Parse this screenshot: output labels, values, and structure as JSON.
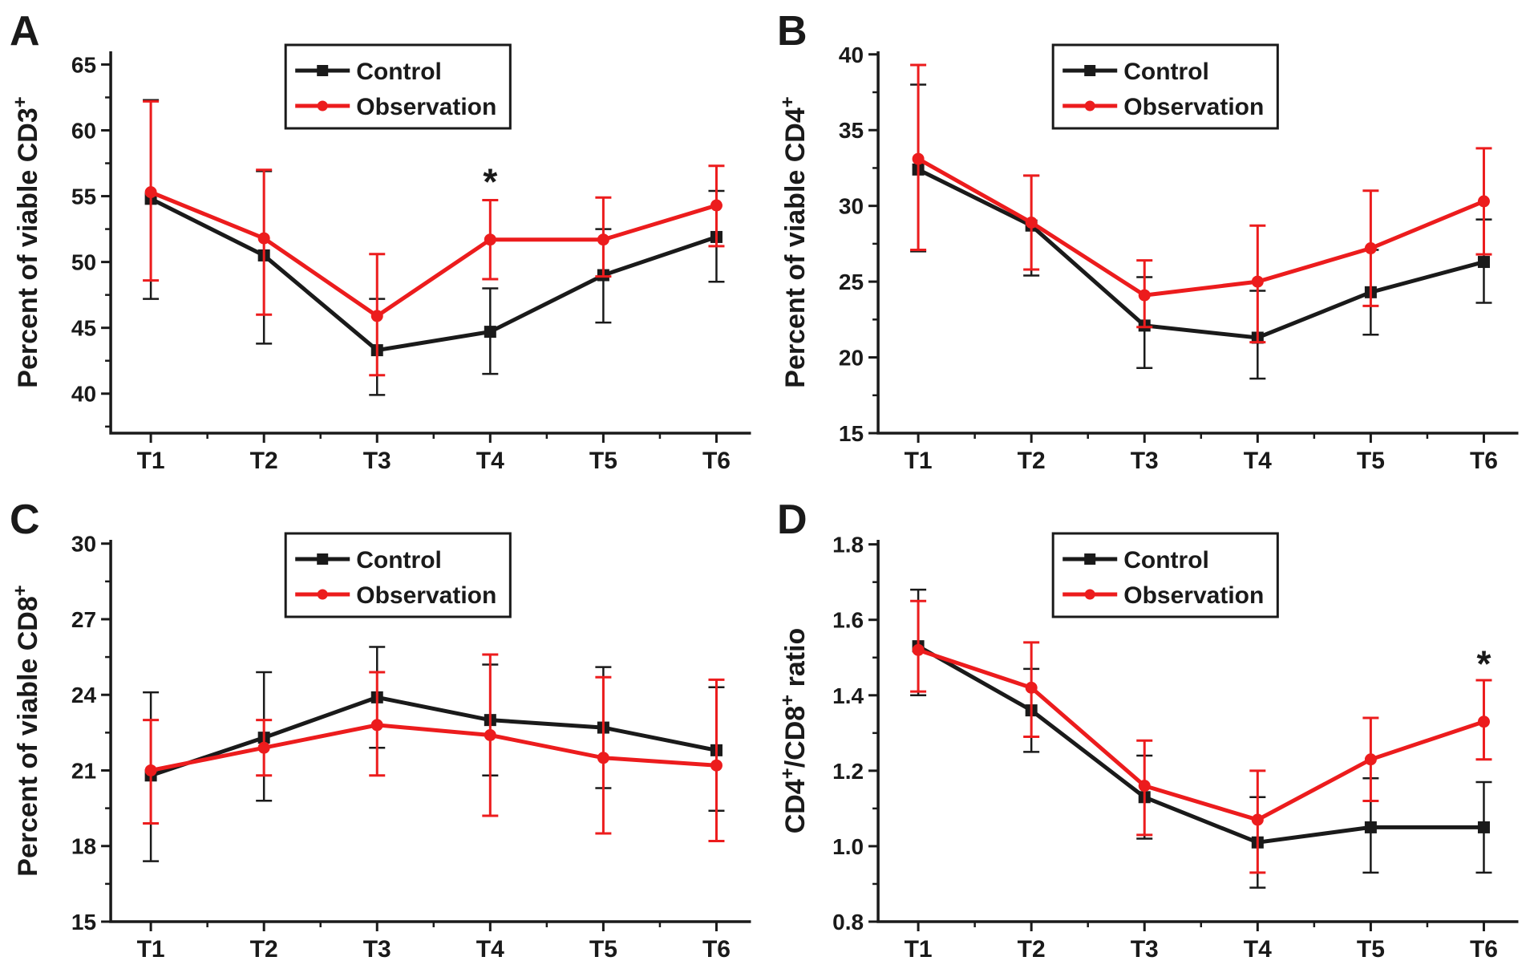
{
  "figure": {
    "background": "#ffffff",
    "axis_color": "#1a1a1a",
    "series_colors": {
      "control": "#1a1a1a",
      "observation": "#ec1c1d"
    },
    "legend_labels": {
      "control": "Control",
      "observation": "Observation"
    }
  },
  "chart_data": [
    {
      "type": "line",
      "panel": "A",
      "ylabel": "Percent of viable CD3+",
      "ylabel_parts": [
        {
          "text": "Percent of viable CD3"
        },
        {
          "text": "+",
          "sup": true
        }
      ],
      "categories": [
        "T1",
        "T2",
        "T3",
        "T4",
        "T5",
        "T6"
      ],
      "ylim": [
        37.0,
        66.0
      ],
      "yticks": [
        40,
        45,
        50,
        55,
        60,
        65
      ],
      "ytick_labels": [
        "40",
        "45",
        "50",
        "55",
        "60",
        "65"
      ],
      "grid": false,
      "legend_position": "upper-center",
      "series": [
        {
          "name": "Control",
          "color_key": "control",
          "marker": "square",
          "values": [
            54.8,
            50.5,
            43.3,
            44.7,
            49.0,
            51.9
          ],
          "err_lo": [
            47.2,
            43.8,
            39.9,
            41.5,
            45.4,
            48.5
          ],
          "err_hi": [
            62.3,
            56.9,
            47.2,
            48.0,
            52.5,
            55.4
          ]
        },
        {
          "name": "Observation",
          "color_key": "observation",
          "marker": "circle",
          "values": [
            55.3,
            51.8,
            45.9,
            51.7,
            51.7,
            54.3
          ],
          "err_lo": [
            48.6,
            46.0,
            41.4,
            48.7,
            48.9,
            51.2
          ],
          "err_hi": [
            62.2,
            57.0,
            50.6,
            54.7,
            54.9,
            57.3
          ]
        }
      ],
      "annotations": [
        {
          "text": "*",
          "category": "T4",
          "value": 56.6
        }
      ]
    },
    {
      "type": "line",
      "panel": "B",
      "ylabel": "Percent of viable CD4+",
      "ylabel_parts": [
        {
          "text": "Percent of viable CD4"
        },
        {
          "text": "+",
          "sup": true
        }
      ],
      "categories": [
        "T1",
        "T2",
        "T3",
        "T4",
        "T5",
        "T6"
      ],
      "ylim": [
        15.0,
        40.2
      ],
      "yticks": [
        15,
        20,
        25,
        30,
        35,
        40
      ],
      "ytick_labels": [
        "15",
        "20",
        "25",
        "30",
        "35",
        "40"
      ],
      "grid": false,
      "legend_position": "upper-center",
      "series": [
        {
          "name": "Control",
          "color_key": "control",
          "marker": "square",
          "values": [
            32.4,
            28.7,
            22.1,
            21.3,
            24.3,
            26.3
          ],
          "err_lo": [
            27.0,
            25.4,
            19.3,
            18.6,
            21.5,
            23.6
          ],
          "err_hi": [
            38.0,
            32.0,
            25.3,
            24.4,
            27.1,
            29.1
          ]
        },
        {
          "name": "Observation",
          "color_key": "observation",
          "marker": "circle",
          "values": [
            33.1,
            28.9,
            24.1,
            25.0,
            27.2,
            30.3
          ],
          "err_lo": [
            27.1,
            25.8,
            22.0,
            21.0,
            23.4,
            26.8
          ],
          "err_hi": [
            39.3,
            32.0,
            26.4,
            28.7,
            31.0,
            33.8
          ]
        }
      ],
      "annotations": []
    },
    {
      "type": "line",
      "panel": "C",
      "ylabel": "Percent of viable CD8+",
      "ylabel_parts": [
        {
          "text": "Percent of viable CD8"
        },
        {
          "text": "+",
          "sup": true
        }
      ],
      "categories": [
        "T1",
        "T2",
        "T3",
        "T4",
        "T5",
        "T6"
      ],
      "ylim": [
        15.0,
        30.15
      ],
      "yticks": [
        15,
        18,
        21,
        24,
        27,
        30
      ],
      "ytick_labels": [
        "15",
        "18",
        "21",
        "24",
        "27",
        "30"
      ],
      "grid": false,
      "legend_position": "upper-center",
      "series": [
        {
          "name": "Control",
          "color_key": "control",
          "marker": "square",
          "values": [
            20.8,
            22.3,
            23.9,
            23.0,
            22.7,
            21.8
          ],
          "err_lo": [
            17.4,
            19.8,
            21.9,
            20.8,
            20.3,
            19.4
          ],
          "err_hi": [
            24.1,
            24.9,
            25.9,
            25.2,
            25.1,
            24.3
          ]
        },
        {
          "name": "Observation",
          "color_key": "observation",
          "marker": "circle",
          "values": [
            21.0,
            21.9,
            22.8,
            22.4,
            21.5,
            21.2
          ],
          "err_lo": [
            18.9,
            20.8,
            20.8,
            19.2,
            18.5,
            18.2
          ],
          "err_hi": [
            23.0,
            23.0,
            24.9,
            25.6,
            24.7,
            24.6
          ]
        }
      ],
      "annotations": []
    },
    {
      "type": "line",
      "panel": "D",
      "ylabel": "CD4+/CD8+ ratio",
      "ylabel_parts": [
        {
          "text": "CD4"
        },
        {
          "text": "+",
          "sup": true
        },
        {
          "text": "/CD8"
        },
        {
          "text": "+",
          "sup": true
        },
        {
          "text": " ratio"
        }
      ],
      "categories": [
        "T1",
        "T2",
        "T3",
        "T4",
        "T5",
        "T6"
      ],
      "ylim": [
        0.8,
        1.812
      ],
      "yticks": [
        0.8,
        1.0,
        1.2,
        1.4,
        1.6,
        1.8
      ],
      "ytick_labels": [
        "0.8",
        "1.0",
        "1.2",
        "1.4",
        "1.6",
        "1.8"
      ],
      "grid": false,
      "legend_position": "upper-center",
      "series": [
        {
          "name": "Control",
          "color_key": "control",
          "marker": "square",
          "values": [
            1.53,
            1.36,
            1.13,
            1.01,
            1.05,
            1.05
          ],
          "err_lo": [
            1.4,
            1.25,
            1.02,
            0.89,
            0.93,
            0.93
          ],
          "err_hi": [
            1.68,
            1.47,
            1.24,
            1.13,
            1.18,
            1.17
          ]
        },
        {
          "name": "Observation",
          "color_key": "observation",
          "marker": "circle",
          "values": [
            1.52,
            1.42,
            1.16,
            1.07,
            1.23,
            1.33
          ],
          "err_lo": [
            1.41,
            1.29,
            1.03,
            0.93,
            1.12,
            1.23
          ],
          "err_hi": [
            1.65,
            1.54,
            1.28,
            1.2,
            1.34,
            1.44
          ]
        }
      ],
      "annotations": [
        {
          "text": "*",
          "category": "T6",
          "value": 1.5
        }
      ]
    }
  ]
}
